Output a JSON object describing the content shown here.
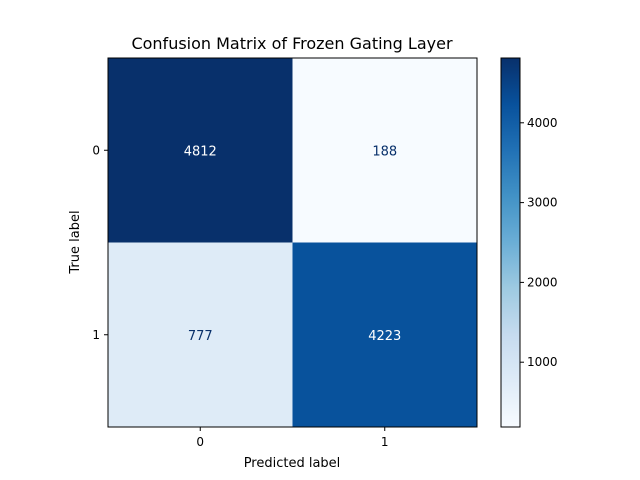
{
  "chart_data": {
    "type": "heatmap",
    "title": "Confusion Matrix of Frozen Gating Layer",
    "xlabel": "Predicted label",
    "ylabel": "True label",
    "x_categories": [
      "0",
      "1"
    ],
    "y_categories": [
      "0",
      "1"
    ],
    "values": [
      [
        4812,
        188
      ],
      [
        777,
        4223
      ]
    ],
    "colormap": "Blues",
    "colorbar": {
      "range": [
        188,
        4812
      ],
      "ticks": [
        1000,
        2000,
        3000,
        4000
      ],
      "tick_labels": [
        "1000",
        "2000",
        "3000",
        "4000"
      ]
    },
    "text_colors": {
      "light": "#ffffff",
      "dark": "#08306b"
    }
  }
}
